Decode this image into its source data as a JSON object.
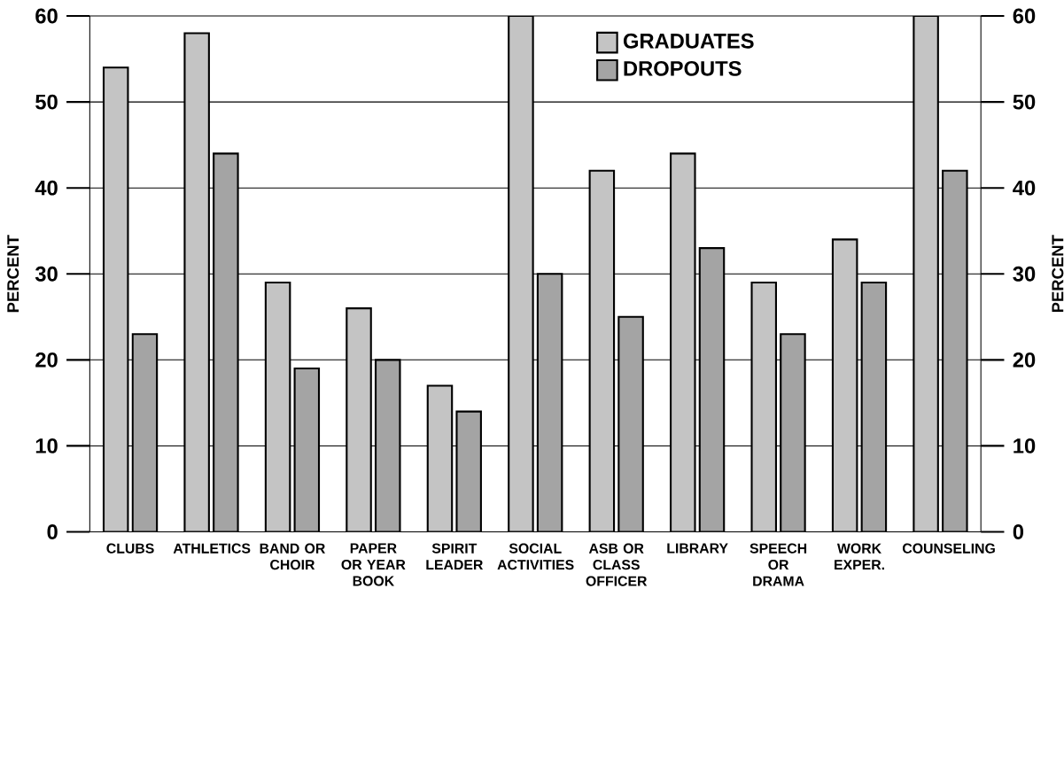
{
  "chart_data": {
    "type": "bar",
    "categories": [
      "CLUBS",
      "ATHLETICS",
      "BAND OR CHOIR",
      "PAPER OR YEAR BOOK",
      "SPIRIT LEADER",
      "SOCIAL ACTIVITIES",
      "ASB OR CLASS OFFICER",
      "LIBRARY",
      "SPEECH OR DRAMA",
      "WORK EXPER.",
      "COUNSELING"
    ],
    "series": [
      {
        "name": "GRADUATES",
        "color": "#c4c4c4",
        "values": [
          54,
          58,
          29,
          26,
          17,
          60,
          42,
          44,
          29,
          34,
          60
        ]
      },
      {
        "name": "DROPOUTS",
        "color": "#a4a4a4",
        "values": [
          23,
          44,
          19,
          20,
          14,
          30,
          25,
          33,
          23,
          29,
          42
        ]
      }
    ],
    "ylabel": "PERCENT",
    "y2label": "PERCENT",
    "ylim": [
      0,
      60
    ],
    "yticks": [
      0,
      10,
      20,
      30,
      40,
      50,
      60
    ],
    "y2lim": [
      0,
      60
    ],
    "y2ticks": [
      0,
      10,
      20,
      30,
      40,
      50,
      60
    ],
    "grid": "y",
    "legend": "top"
  }
}
